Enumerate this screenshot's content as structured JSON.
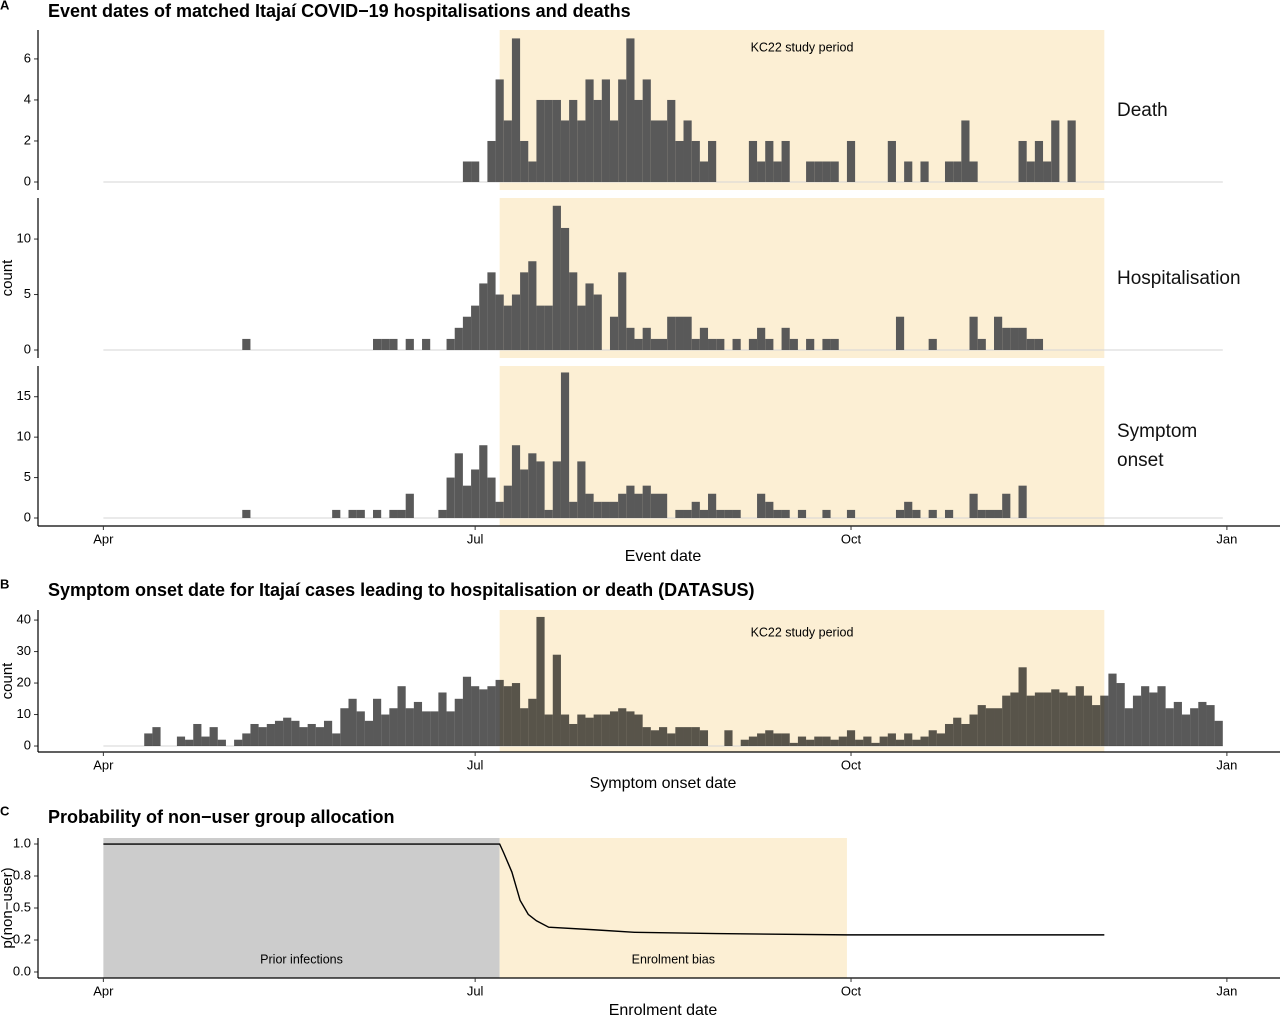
{
  "chart_data": [
    {
      "type": "histogram",
      "label": "A",
      "title": "Event dates of matched Itajaí COVID−19 hospitalisations and deaths",
      "xlabel": "Event date",
      "ylabel": "count",
      "color": "#595959",
      "xlim": [
        -16,
        288
      ],
      "xticks": [
        {
          "value": 0,
          "label": "Apr"
        },
        {
          "value": 91,
          "label": "Jul"
        },
        {
          "value": 183,
          "label": "Oct"
        },
        {
          "value": 275,
          "label": "Jan"
        }
      ],
      "regions": [
        {
          "start": 97,
          "end": 245,
          "color": "#fcefd4",
          "label": "KC22 study period"
        }
      ],
      "bins": [
        0,
        2,
        4,
        6,
        8,
        10,
        12,
        14,
        16,
        18,
        20,
        22,
        24,
        26,
        28,
        30,
        32,
        34,
        36,
        38,
        40,
        42,
        44,
        46,
        48,
        50,
        52,
        54,
        56,
        58,
        60,
        62,
        64,
        66,
        68,
        70,
        72,
        74,
        76,
        78,
        80,
        82,
        84,
        86,
        88,
        90,
        92,
        94,
        96,
        98,
        100,
        102,
        104,
        106,
        108,
        110,
        112,
        114,
        116,
        118,
        120,
        122,
        124,
        126,
        128,
        130,
        132,
        134,
        136,
        138,
        140,
        142,
        144,
        146,
        148,
        150,
        152,
        154,
        156,
        158,
        160,
        162,
        164,
        166,
        168,
        170,
        172,
        174,
        176,
        178,
        180,
        182,
        184,
        186,
        188,
        190,
        192,
        194,
        196,
        198,
        200,
        202,
        204,
        206,
        208,
        210,
        212,
        214,
        216,
        218,
        220,
        222,
        224,
        226,
        228,
        230,
        232,
        234,
        236,
        238,
        240,
        242,
        244,
        246,
        248,
        250,
        252,
        254,
        256,
        258,
        260,
        262,
        264,
        266,
        268,
        270,
        272,
        274
      ],
      "facets": [
        {
          "name": "Death",
          "ylim": [
            -0.39,
            7.41
          ],
          "yticks": [
            0,
            2,
            4,
            6
          ],
          "counts": [
            0,
            0,
            0,
            0,
            0,
            0,
            0,
            0,
            0,
            0,
            0,
            0,
            0,
            0,
            0,
            0,
            0,
            0,
            0,
            0,
            0,
            0,
            0,
            0,
            0,
            0,
            0,
            0,
            0,
            0,
            0,
            0,
            0,
            0,
            0,
            0,
            0,
            0,
            0,
            0,
            0,
            0,
            0,
            0,
            1,
            1,
            0,
            2,
            5,
            3,
            7,
            2,
            1,
            4,
            4,
            4,
            3,
            4,
            3,
            5,
            4,
            5,
            3,
            5,
            7,
            4,
            5,
            3,
            3,
            4,
            2,
            3,
            2,
            1,
            2,
            0,
            0,
            0,
            0,
            2,
            1,
            2,
            1,
            2,
            0,
            0,
            1,
            1,
            1,
            1,
            0,
            2,
            0,
            0,
            0,
            0,
            2,
            0,
            1,
            0,
            1,
            0,
            0,
            1,
            1,
            3,
            1,
            0,
            0,
            0,
            0,
            0,
            2,
            1,
            2,
            1,
            3,
            0,
            3,
            0,
            0,
            0,
            0,
            0,
            0,
            0,
            0,
            0,
            0,
            0,
            0,
            0,
            0,
            0,
            0,
            0,
            0
          ]
        },
        {
          "name": "Hospitalisation",
          "ylim": [
            -0.72,
            13.7
          ],
          "yticks": [
            0,
            5,
            10
          ],
          "counts": [
            0,
            0,
            0,
            0,
            0,
            0,
            0,
            0,
            0,
            0,
            0,
            0,
            0,
            0,
            0,
            0,
            0,
            1,
            0,
            0,
            0,
            0,
            0,
            0,
            0,
            0,
            0,
            0,
            0,
            0,
            0,
            0,
            0,
            1,
            1,
            1,
            0,
            1,
            0,
            1,
            0,
            0,
            1,
            2,
            3,
            4,
            6,
            7,
            5,
            4,
            5,
            7,
            8,
            4,
            4,
            13,
            11,
            7,
            4,
            6,
            5,
            0,
            3,
            7,
            2,
            1,
            2,
            1,
            1,
            3,
            3,
            3,
            1,
            2,
            1,
            1,
            0,
            1,
            0,
            1,
            2,
            1,
            0,
            2,
            1,
            0,
            1,
            0,
            1,
            1,
            0,
            0,
            0,
            0,
            0,
            0,
            0,
            3,
            0,
            0,
            0,
            1,
            0,
            0,
            0,
            0,
            3,
            1,
            0,
            3,
            2,
            2,
            2,
            1,
            1,
            0,
            0,
            0,
            0,
            0,
            0,
            0,
            0,
            0,
            0,
            0,
            0,
            0,
            0,
            0,
            0,
            0,
            0,
            0,
            0,
            0,
            0
          ]
        },
        {
          "name": "Symptom onset",
          "ylim": [
            -0.99,
            18.8
          ],
          "yticks": [
            0,
            5,
            10,
            15
          ],
          "counts": [
            0,
            0,
            0,
            0,
            0,
            0,
            0,
            0,
            0,
            0,
            0,
            0,
            0,
            0,
            0,
            0,
            0,
            1,
            0,
            0,
            0,
            0,
            0,
            0,
            0,
            0,
            0,
            0,
            1,
            0,
            1,
            1,
            0,
            1,
            0,
            1,
            1,
            3,
            0,
            0,
            0,
            1,
            5,
            8,
            4,
            6,
            9,
            5,
            2,
            4,
            9,
            6,
            8,
            7,
            1,
            7,
            18,
            2,
            7,
            3,
            2,
            2,
            2,
            3,
            4,
            3,
            4,
            3,
            3,
            0,
            1,
            1,
            2,
            1,
            3,
            1,
            1,
            1,
            0,
            0,
            3,
            2,
            1,
            1,
            0,
            1,
            0,
            0,
            1,
            0,
            0,
            1,
            0,
            0,
            0,
            0,
            0,
            1,
            2,
            1,
            0,
            1,
            0,
            1,
            0,
            0,
            3,
            1,
            1,
            1,
            3,
            0,
            4,
            0,
            0,
            0,
            0,
            0,
            0,
            0,
            0,
            0,
            0,
            0,
            0,
            0,
            0,
            0,
            0,
            0,
            0,
            0,
            0,
            0,
            0,
            0,
            0
          ]
        }
      ]
    },
    {
      "type": "histogram",
      "label": "B",
      "title": "Symptom onset date for Itajaí cases leading to hospitalisation or death (DATASUS)",
      "xlabel": "Symptom onset date",
      "ylabel": "count",
      "color": "#000000",
      "opacity": 0.65,
      "xlim": [
        -16,
        288
      ],
      "xticks": [
        {
          "value": 0,
          "label": "Apr"
        },
        {
          "value": 91,
          "label": "Jul"
        },
        {
          "value": 183,
          "label": "Oct"
        },
        {
          "value": 275,
          "label": "Jan"
        }
      ],
      "regions": [
        {
          "start": 97,
          "end": 245,
          "color": "#fcefd4",
          "label": "KC22 study period"
        }
      ],
      "bins": [
        0,
        2,
        4,
        6,
        8,
        10,
        12,
        14,
        16,
        18,
        20,
        22,
        24,
        26,
        28,
        30,
        32,
        34,
        36,
        38,
        40,
        42,
        44,
        46,
        48,
        50,
        52,
        54,
        56,
        58,
        60,
        62,
        64,
        66,
        68,
        70,
        72,
        74,
        76,
        78,
        80,
        82,
        84,
        86,
        88,
        90,
        92,
        94,
        96,
        98,
        100,
        102,
        104,
        106,
        108,
        110,
        112,
        114,
        116,
        118,
        120,
        122,
        124,
        126,
        128,
        130,
        132,
        134,
        136,
        138,
        140,
        142,
        144,
        146,
        148,
        150,
        152,
        154,
        156,
        158,
        160,
        162,
        164,
        166,
        168,
        170,
        172,
        174,
        176,
        178,
        180,
        182,
        184,
        186,
        188,
        190,
        192,
        194,
        196,
        198,
        200,
        202,
        204,
        206,
        208,
        210,
        212,
        214,
        216,
        218,
        220,
        222,
        224,
        226,
        228,
        230,
        232,
        234,
        236,
        238,
        240,
        242,
        244,
        246,
        248,
        250,
        252,
        254,
        256,
        258,
        260,
        262,
        264,
        266,
        268,
        270,
        272,
        274
      ],
      "facets": [
        {
          "ylim": [
            -1.9,
            43.2
          ],
          "yticks": [
            0,
            10,
            20,
            30,
            40
          ],
          "counts": [
            0,
            0,
            0,
            0,
            0,
            4,
            6,
            0,
            0,
            3,
            2,
            7,
            3,
            6,
            2,
            0,
            2,
            4,
            7,
            6,
            7,
            8,
            9,
            8,
            6,
            7,
            6,
            8,
            4,
            12,
            15,
            11,
            8,
            15,
            10,
            12,
            19,
            12,
            14,
            11,
            11,
            17,
            11,
            15,
            22,
            19,
            18,
            19,
            21,
            19,
            20,
            12,
            15,
            41,
            10,
            29,
            10,
            7,
            10,
            9,
            10,
            10,
            11,
            12,
            11,
            10,
            6,
            5,
            6,
            4,
            6,
            6,
            6,
            5,
            0,
            0,
            5,
            0,
            2,
            3,
            4,
            5,
            4,
            4,
            1,
            3,
            2,
            3,
            3,
            2,
            3,
            5,
            2,
            3,
            1,
            3,
            4,
            2,
            4,
            2,
            3,
            5,
            4,
            7,
            9,
            7,
            10,
            13,
            12,
            12,
            16,
            17,
            25,
            16,
            17,
            17,
            18,
            17,
            16,
            19,
            16,
            13,
            16,
            23,
            20,
            12,
            16,
            19,
            17,
            19,
            12,
            14,
            10,
            12,
            14,
            13,
            8
          ]
        }
      ]
    },
    {
      "type": "line",
      "label": "C",
      "title": "Probability of non−user group allocation",
      "xlabel": "Enrolment date",
      "ylabel": "p(non−user)",
      "color": "#000000",
      "xlim": [
        -16,
        288
      ],
      "ylim": [
        -0.047,
        1.047
      ],
      "xticks": [
        {
          "value": 0,
          "label": "Apr"
        },
        {
          "value": 91,
          "label": "Jul"
        },
        {
          "value": 183,
          "label": "Oct"
        },
        {
          "value": 275,
          "label": "Jan"
        }
      ],
      "yticks": [
        {
          "value": 0,
          "label": "0.0"
        },
        {
          "value": 0.25,
          "label": "0.2"
        },
        {
          "value": 0.5,
          "label": "0.5"
        },
        {
          "value": 0.75,
          "label": "0.8"
        },
        {
          "value": 1,
          "label": "1.0"
        }
      ],
      "regions": [
        {
          "start": 0,
          "end": 97,
          "color": "#cccccc",
          "label": "Prior infections"
        },
        {
          "start": 97,
          "end": 182,
          "color": "#fcefd4",
          "label": "Enrolment bias"
        }
      ],
      "x": [
        0,
        97,
        98,
        100,
        102,
        104,
        106,
        109,
        120,
        130,
        150,
        182,
        245
      ],
      "values": [
        1,
        1,
        0.93,
        0.78,
        0.56,
        0.45,
        0.4,
        0.35,
        0.33,
        0.31,
        0.3,
        0.29,
        0.29
      ]
    }
  ]
}
